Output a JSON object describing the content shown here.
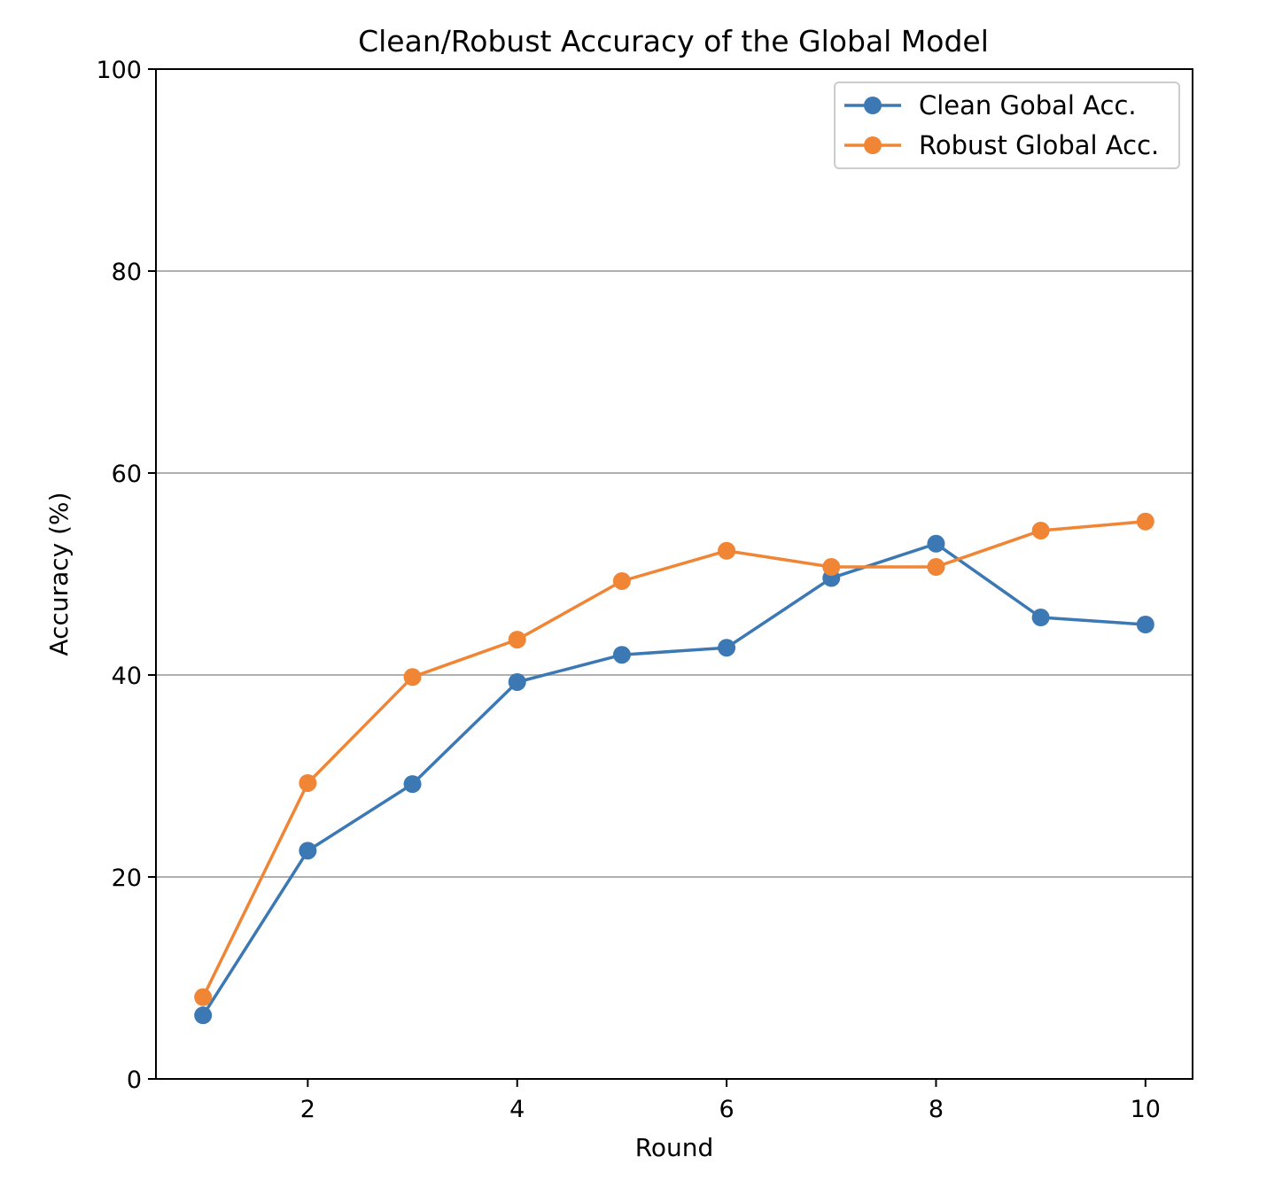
{
  "chart_data": {
    "type": "line",
    "title": "Clean/Robust Accuracy of the Global Model",
    "xlabel": "Round",
    "ylabel": "Accuracy (%)",
    "x": [
      1,
      2,
      3,
      4,
      5,
      6,
      7,
      8,
      9,
      10
    ],
    "xlim": [
      0.55,
      10.45
    ],
    "ylim": [
      0,
      100
    ],
    "xticks": [
      2,
      4,
      6,
      8,
      10
    ],
    "yticks": [
      0,
      20,
      40,
      60,
      80,
      100
    ],
    "grid": "horizontal",
    "legend_position": "top-right",
    "series": [
      {
        "name": "Clean Gobal Acc.",
        "color": "#3b78b4",
        "values": [
          6.3,
          22.6,
          29.2,
          39.3,
          42.0,
          42.7,
          49.6,
          53.0,
          45.7,
          45.0
        ]
      },
      {
        "name": "Robust Global Acc.",
        "color": "#ef8535",
        "values": [
          8.1,
          29.3,
          39.8,
          43.5,
          49.3,
          52.3,
          50.7,
          50.7,
          54.3,
          55.2
        ]
      }
    ]
  }
}
